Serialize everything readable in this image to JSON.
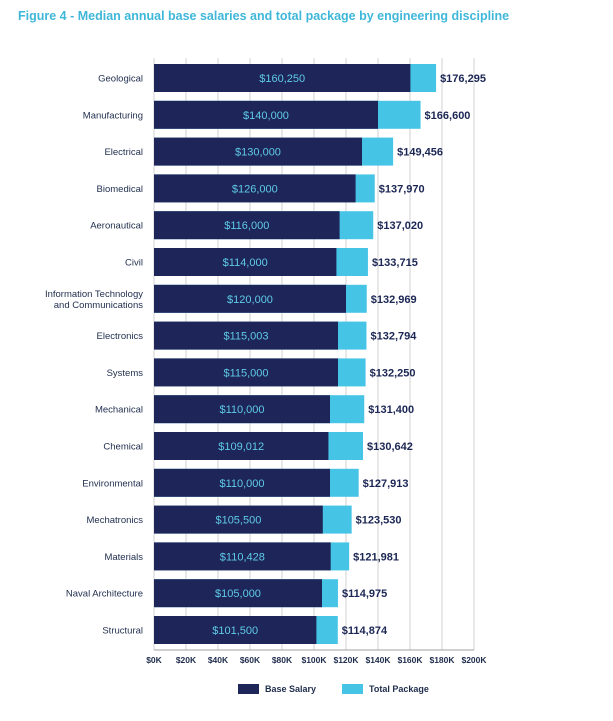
{
  "title": "Figure 4 - Median annual base salaries and total package by engineering discipline",
  "colors": {
    "base": "#1e2659",
    "total": "#45c4e6",
    "grid": "#d0d0d0",
    "axis": "#a0a0a0"
  },
  "legend": {
    "base_label": "Base Salary",
    "total_label": "Total Package"
  },
  "chart_data": {
    "type": "bar",
    "orientation": "horizontal",
    "title": "Figure 4 - Median annual base salaries and total package by engineering discipline",
    "categories": [
      "Geological",
      "Manufacturing",
      "Electrical",
      "Biomedical",
      "Aeronautical",
      "Civil",
      "Information Technology and Communications",
      "Electronics",
      "Systems",
      "Mechanical",
      "Chemical",
      "Environmental",
      "Mechatronics",
      "Materials",
      "Naval Architecture",
      "Structural"
    ],
    "category_lines": [
      [
        "Geological"
      ],
      [
        "Manufacturing"
      ],
      [
        "Electrical"
      ],
      [
        "Biomedical"
      ],
      [
        "Aeronautical"
      ],
      [
        "Civil"
      ],
      [
        "Information Technology",
        "and Communications"
      ],
      [
        "Electronics"
      ],
      [
        "Systems"
      ],
      [
        "Mechanical"
      ],
      [
        "Chemical"
      ],
      [
        "Environmental"
      ],
      [
        "Mechatronics"
      ],
      [
        "Materials"
      ],
      [
        "Naval Architecture"
      ],
      [
        "Structural"
      ]
    ],
    "series": [
      {
        "name": "Base Salary",
        "values": [
          160250,
          140000,
          130000,
          126000,
          116000,
          114000,
          120000,
          115003,
          115000,
          110000,
          109012,
          110000,
          105500,
          110428,
          105000,
          101500
        ],
        "labels": [
          "$160,250",
          "$140,000",
          "$130,000",
          "$126,000",
          "$116,000",
          "$114,000",
          "$120,000",
          "$115,003",
          "$115,000",
          "$110,000",
          "$109,012",
          "$110,000",
          "$105,500",
          "$110,428",
          "$105,000",
          "$101,500"
        ]
      },
      {
        "name": "Total Package",
        "values": [
          176295,
          166600,
          149456,
          137970,
          137020,
          133715,
          132969,
          132794,
          132250,
          131400,
          130642,
          127913,
          123530,
          121981,
          114975,
          114874
        ],
        "labels": [
          "$176,295",
          "$166,600",
          "$149,456",
          "$137,970",
          "$137,020",
          "$133,715",
          "$132,969",
          "$132,794",
          "$132,250",
          "$131,400",
          "$130,642",
          "$127,913",
          "$123,530",
          "$121,981",
          "$114,975",
          "$114,874"
        ]
      }
    ],
    "xlim": [
      0,
      200000
    ],
    "xticks": [
      0,
      20000,
      40000,
      60000,
      80000,
      100000,
      120000,
      140000,
      160000,
      180000,
      200000
    ],
    "xtick_labels": [
      "$0K",
      "$20K",
      "$40K",
      "$60K",
      "$80K",
      "$100K",
      "$120K",
      "$140K",
      "$160K",
      "$180K",
      "$200K"
    ],
    "grid": true,
    "legend_position": "bottom"
  }
}
